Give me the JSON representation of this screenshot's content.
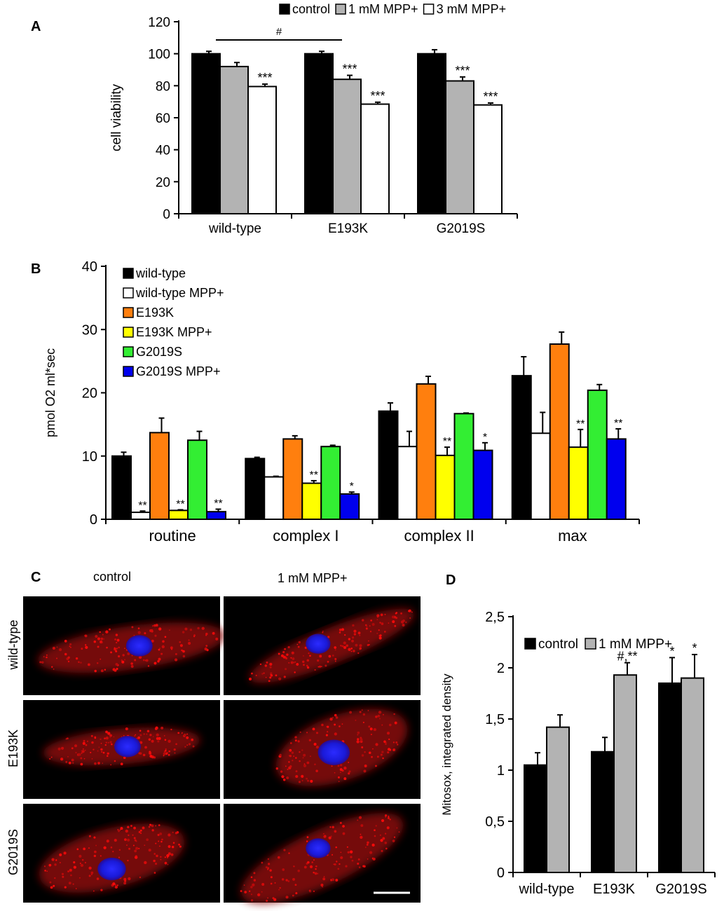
{
  "panel_labels": {
    "a": "A",
    "b": "B",
    "c": "C",
    "d": "D"
  },
  "micrograph": {
    "col_headers": [
      "control",
      "1 mM MPP+"
    ],
    "row_labels": [
      "wild-type",
      "E193K",
      "G2019S"
    ]
  },
  "chart_data": [
    {
      "panel": "A",
      "type": "bar",
      "ylabel": "cell viability",
      "ylim": [
        0,
        120
      ],
      "yticks": [
        0,
        20,
        40,
        60,
        80,
        100,
        120
      ],
      "categories": [
        "wild-type",
        "E193K",
        "G2019S"
      ],
      "series": [
        {
          "name": "control",
          "color": "#000000",
          "values": [
            100,
            100,
            100
          ],
          "errors": [
            1.5,
            1.5,
            2.5
          ],
          "annotations": [
            "",
            "",
            ""
          ]
        },
        {
          "name": "1 mM MPP+",
          "color": "#b3b3b3",
          "values": [
            92,
            84,
            83
          ],
          "errors": [
            2.5,
            2.5,
            2.5
          ],
          "annotations": [
            "",
            "***",
            "***"
          ]
        },
        {
          "name": "3 mM MPP+",
          "color": "#ffffff",
          "values": [
            79.5,
            68.5,
            68
          ],
          "errors": [
            1.5,
            1.2,
            1.2
          ],
          "annotations": [
            "***",
            "***",
            "***"
          ]
        }
      ],
      "legend": {
        "position": "top",
        "entries": [
          "control",
          "1 mM MPP+",
          "3 mM MPP+"
        ]
      },
      "bracket": {
        "text": "#",
        "from": "wild-type",
        "to": "E193K"
      }
    },
    {
      "panel": "B",
      "type": "bar",
      "ylabel": "pmol O2 ml*sec",
      "ylim": [
        0,
        40
      ],
      "yticks": [
        0,
        10,
        20,
        30,
        40
      ],
      "categories": [
        "routine",
        "complex I",
        "complex II",
        "max"
      ],
      "series": [
        {
          "name": "wild-type",
          "color": "#000000",
          "values": [
            10,
            9.6,
            17.1,
            22.7
          ],
          "errors": [
            0.6,
            0.2,
            1.3,
            3.0
          ],
          "annotations": [
            "",
            "",
            "",
            ""
          ]
        },
        {
          "name": "wild-type MPP+",
          "color": "#ffffff",
          "values": [
            1.1,
            6.7,
            11.5,
            13.6
          ],
          "errors": [
            0.2,
            0.1,
            2.4,
            3.3
          ],
          "annotations": [
            "**",
            "",
            "",
            ""
          ]
        },
        {
          "name": "E193K",
          "color": "#ff7f0e",
          "values": [
            13.7,
            12.7,
            21.4,
            27.7
          ],
          "errors": [
            2.3,
            0.5,
            1.2,
            1.9
          ],
          "annotations": [
            "",
            "",
            "",
            ""
          ]
        },
        {
          "name": "E193K MPP+",
          "color": "#ffff00",
          "values": [
            1.4,
            5.7,
            10.1,
            11.4
          ],
          "errors": [
            0.1,
            0.4,
            1.3,
            2.8
          ],
          "annotations": [
            "**",
            "**",
            "**",
            "**"
          ]
        },
        {
          "name": "G2019S",
          "color": "#33ee33",
          "values": [
            12.5,
            11.5,
            16.7,
            20.4
          ],
          "errors": [
            1.4,
            0.2,
            0.1,
            0.9
          ],
          "annotations": [
            "",
            "",
            "",
            ""
          ]
        },
        {
          "name": "G2019S MPP+",
          "color": "#0000ee",
          "values": [
            1.2,
            4.0,
            10.9,
            12.7
          ],
          "errors": [
            0.4,
            0.3,
            1.2,
            1.6
          ],
          "annotations": [
            "**",
            "*",
            "*",
            "**"
          ]
        }
      ],
      "legend": {
        "position": "top-left",
        "entries": [
          "wild-type",
          "wild-type MPP+",
          "E193K",
          "E193K MPP+",
          "G2019S",
          "G2019S MPP+"
        ]
      }
    },
    {
      "panel": "D",
      "type": "bar",
      "ylabel": "Mitosox, integrated density",
      "ylim": [
        0,
        2.5
      ],
      "yticks": [
        "0",
        "0,5",
        "1",
        "1,5",
        "2",
        "2,5"
      ],
      "categories": [
        "wild-type",
        "E193K",
        "G2019S"
      ],
      "series": [
        {
          "name": "control",
          "color": "#000000",
          "values": [
            1.05,
            1.18,
            1.85
          ],
          "errors": [
            0.12,
            0.14,
            0.25
          ],
          "annotations": [
            "",
            "",
            "*"
          ]
        },
        {
          "name": "1 mM MPP+",
          "color": "#b3b3b3",
          "values": [
            1.42,
            1.93,
            1.9
          ],
          "errors": [
            0.12,
            0.12,
            0.23
          ],
          "annotations": [
            "",
            "#,**",
            "*"
          ]
        }
      ],
      "legend": {
        "position": "top",
        "entries": [
          "control",
          "1 mM MPP+"
        ]
      }
    }
  ]
}
